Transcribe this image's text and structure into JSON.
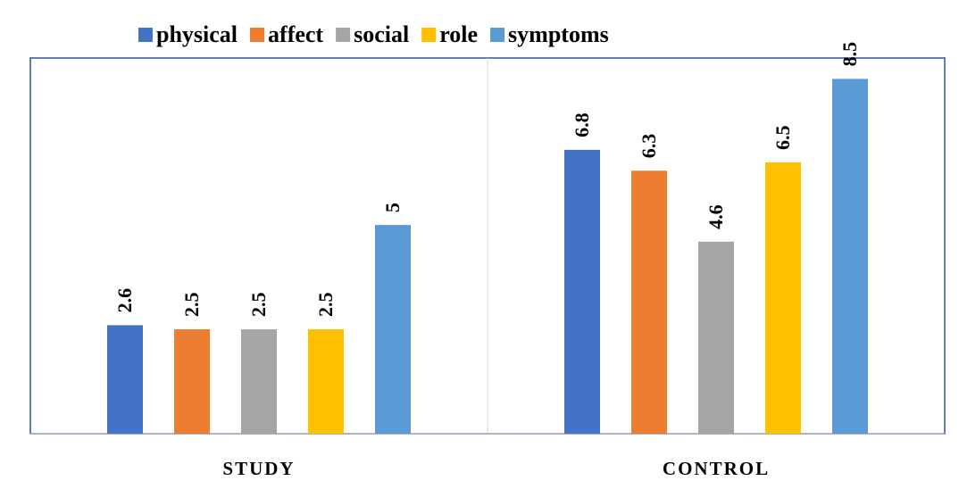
{
  "chart_data": {
    "type": "bar",
    "categories": [
      "STUDY",
      "CONTROL"
    ],
    "series": [
      {
        "name": "physical",
        "color": "#4472C4",
        "values": [
          2.6,
          6.8
        ]
      },
      {
        "name": "affect",
        "color": "#ED7D31",
        "values": [
          2.5,
          6.3
        ]
      },
      {
        "name": "social",
        "color": "#A5A5A5",
        "values": [
          2.5,
          4.6
        ]
      },
      {
        "name": "role",
        "color": "#FFC000",
        "values": [
          2.5,
          6.5
        ]
      },
      {
        "name": "symptoms",
        "color": "#5B9BD5",
        "values": [
          5,
          8.5
        ]
      }
    ],
    "data_labels": [
      [
        "2.6",
        "6.8"
      ],
      [
        "2.5",
        "6.3"
      ],
      [
        "2.5",
        "4.6"
      ],
      [
        "2.5",
        "6.5"
      ],
      [
        "5",
        "8.5"
      ]
    ],
    "title": "",
    "xlabel": "",
    "ylabel": "",
    "ylim": [
      0,
      9
    ],
    "legend_position": "top",
    "grid": false
  }
}
